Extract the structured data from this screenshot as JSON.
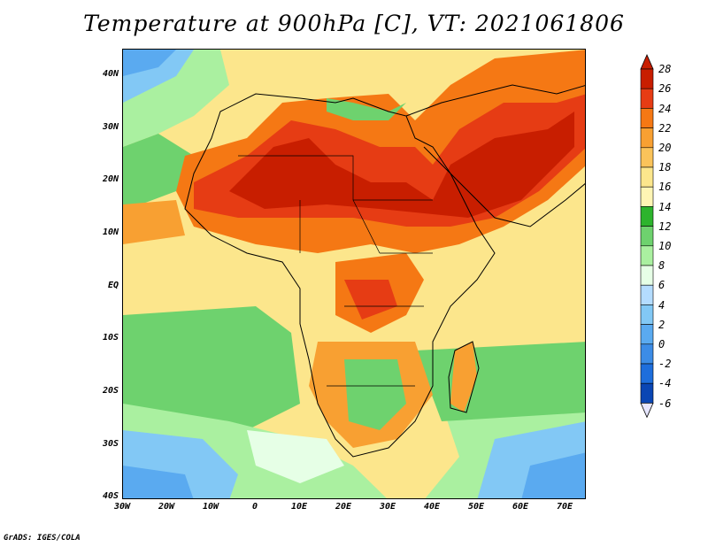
{
  "title": "Temperature at 900hPa [C], VT: 2021061806",
  "credit": "GrADS: IGES/COLA",
  "map": {
    "lat_ticks": [
      "40N",
      "30N",
      "20N",
      "10N",
      "EQ",
      "10S",
      "20S",
      "30S",
      "40S"
    ],
    "lon_ticks": [
      "30W",
      "20W",
      "10W",
      "0",
      "10E",
      "20E",
      "30E",
      "40E",
      "50E",
      "60E",
      "70E"
    ],
    "lon_range": [
      -30,
      75
    ],
    "lat_range": [
      -40,
      45
    ]
  },
  "colorbar": {
    "labels": [
      "28",
      "26",
      "24",
      "22",
      "20",
      "18",
      "16",
      "14",
      "12",
      "10",
      "8",
      "6",
      "4",
      "2",
      "0",
      "-2",
      "-4",
      "-6"
    ],
    "colors": [
      "#c81e00",
      "#e63c14",
      "#f57814",
      "#f8a032",
      "#fac35a",
      "#fce68c",
      "#fff5b4",
      "#2db42d",
      "#6ed26e",
      "#aaf0a0",
      "#e6ffe6",
      "#b4dcff",
      "#82c8f5",
      "#5aaaf0",
      "#3c8ce6",
      "#1e6edc",
      "#0a46b4",
      "#000a78"
    ]
  }
}
